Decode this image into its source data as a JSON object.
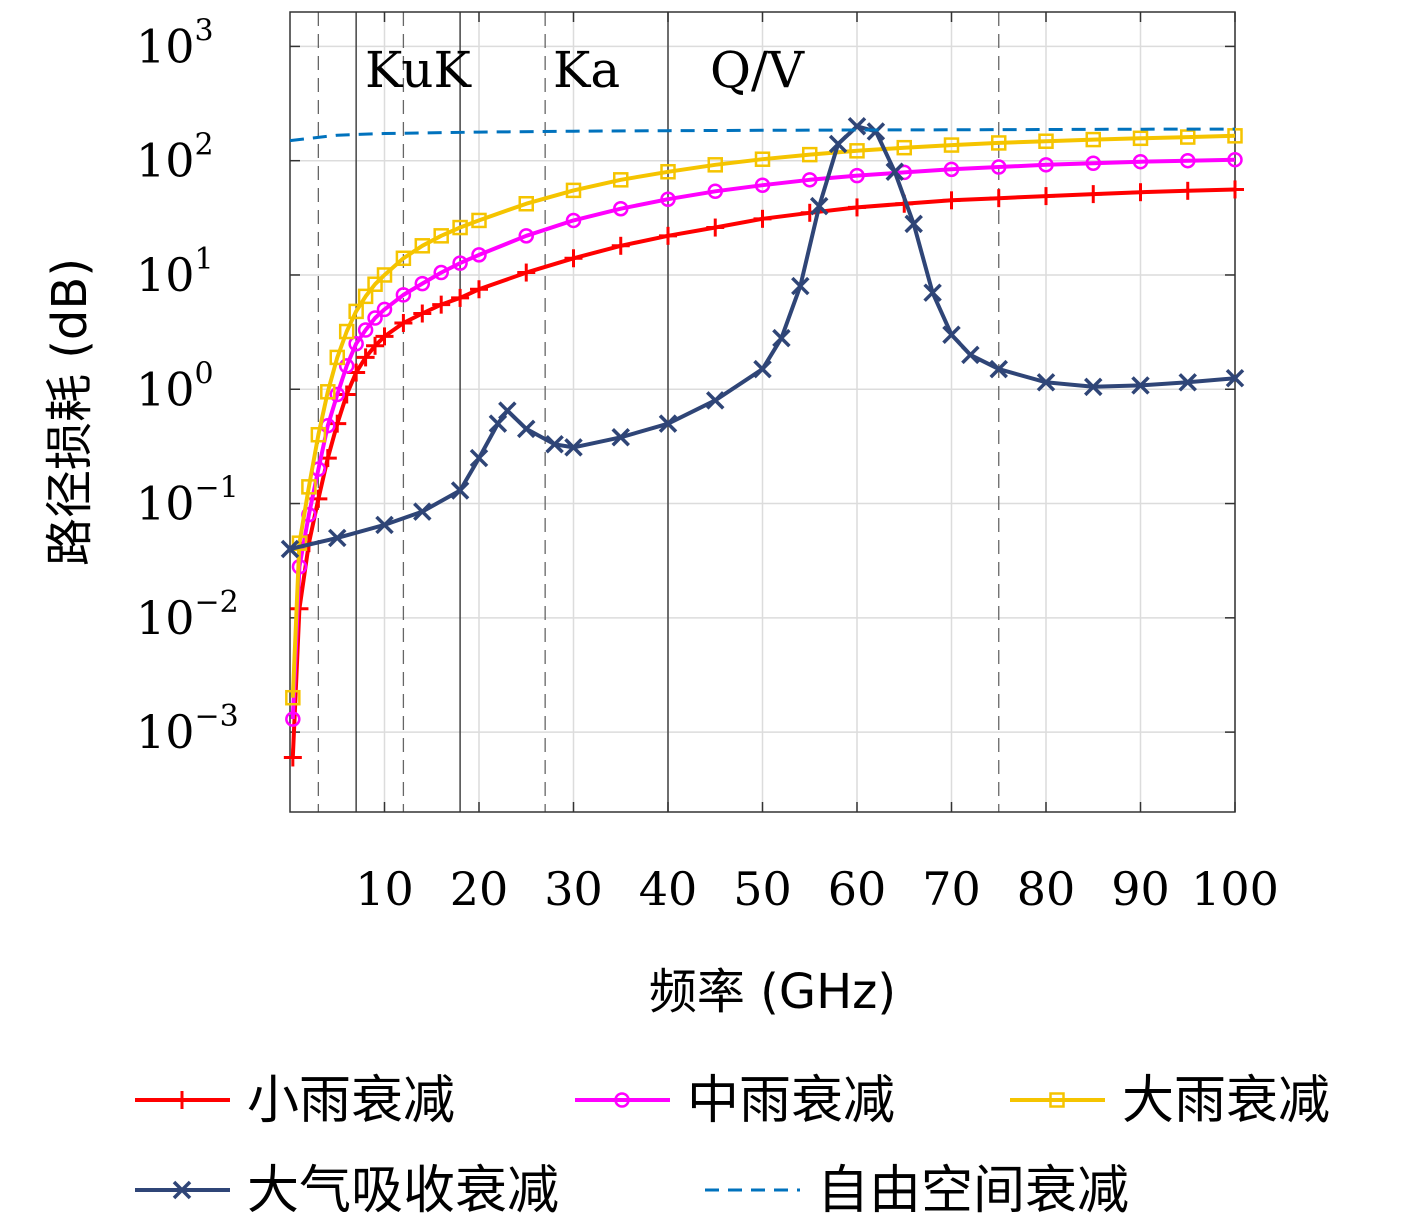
{
  "chart_data": {
    "type": "line",
    "xlabel": "频率 (GHz)",
    "ylabel": "路径损耗 (dB)",
    "x_scale": "linear",
    "y_scale": "log",
    "xlim": [
      0,
      100
    ],
    "ylim": [
      0.0002,
      2000
    ],
    "x_ticks": [
      10,
      20,
      30,
      40,
      50,
      60,
      70,
      80,
      90,
      100
    ],
    "y_ticks": [
      {
        "value": 0.001,
        "base": "10",
        "exp": "−3"
      },
      {
        "value": 0.01,
        "base": "10",
        "exp": "−2"
      },
      {
        "value": 0.1,
        "base": "10",
        "exp": "−1"
      },
      {
        "value": 1,
        "base": "10",
        "exp": "0"
      },
      {
        "value": 10,
        "base": "10",
        "exp": "1"
      },
      {
        "value": 100,
        "base": "10",
        "exp": "2"
      },
      {
        "value": 1000,
        "base": "10",
        "exp": "3"
      }
    ],
    "grid": true,
    "band_labels": [
      "KuK",
      "Ka",
      "Q/V"
    ],
    "band_boundaries_solid": [
      7,
      18,
      40
    ],
    "band_boundaries_dashed": [
      3,
      12,
      27,
      75
    ],
    "legend_position": "bottom",
    "series": [
      {
        "name": "小雨衰减",
        "color": "#ff0000",
        "marker": "plus",
        "x": [
          0.3,
          1,
          2,
          3,
          4,
          5,
          6,
          7,
          8,
          9,
          10,
          12,
          14,
          16,
          18,
          20,
          25,
          30,
          35,
          40,
          45,
          50,
          55,
          60,
          65,
          70,
          75,
          80,
          85,
          90,
          95,
          100
        ],
        "values": [
          0.0006,
          0.012,
          0.045,
          0.11,
          0.25,
          0.5,
          0.9,
          1.4,
          1.9,
          2.4,
          2.9,
          3.8,
          4.6,
          5.5,
          6.3,
          7.5,
          10.5,
          14,
          18,
          22,
          26,
          31,
          35,
          39,
          42,
          45,
          47,
          49,
          51,
          53,
          54.5,
          56
        ]
      },
      {
        "name": "中雨衰减",
        "color": "#ff00ff",
        "marker": "circle",
        "x": [
          0.3,
          1,
          2,
          3,
          4,
          5,
          6,
          7,
          8,
          9,
          10,
          12,
          14,
          16,
          18,
          20,
          25,
          30,
          35,
          40,
          45,
          50,
          55,
          60,
          65,
          70,
          75,
          80,
          85,
          90,
          95,
          100
        ],
        "values": [
          0.0013,
          0.028,
          0.08,
          0.2,
          0.48,
          0.9,
          1.6,
          2.5,
          3.3,
          4.2,
          5,
          6.7,
          8.4,
          10.5,
          12.7,
          15,
          22,
          30,
          38,
          46,
          54,
          61,
          68,
          74,
          79,
          84,
          88,
          92,
          95,
          98,
          100,
          102
        ]
      },
      {
        "name": "大雨衰减",
        "color": "#f5c400",
        "marker": "square",
        "x": [
          0.3,
          1,
          2,
          3,
          4,
          5,
          6,
          7,
          8,
          9,
          10,
          12,
          14,
          16,
          18,
          20,
          25,
          30,
          35,
          40,
          45,
          50,
          55,
          60,
          65,
          70,
          75,
          80,
          85,
          90,
          95,
          100
        ],
        "values": [
          0.002,
          0.045,
          0.14,
          0.4,
          0.95,
          1.9,
          3.2,
          4.8,
          6.5,
          8.3,
          10,
          14,
          18,
          22,
          26,
          30,
          42,
          55,
          68,
          80,
          92,
          103,
          113,
          122,
          130,
          137,
          143,
          148,
          153,
          157,
          161,
          165
        ]
      },
      {
        "name": "大气吸收衰减",
        "color": "#2f4577",
        "marker": "x",
        "x": [
          0,
          5,
          10,
          14,
          18,
          20,
          22,
          23,
          25,
          28,
          30,
          35,
          40,
          45,
          50,
          52,
          54,
          56,
          58,
          60,
          62,
          64,
          66,
          68,
          70,
          72,
          75,
          80,
          85,
          90,
          95,
          100
        ],
        "values": [
          0.04,
          0.05,
          0.065,
          0.085,
          0.13,
          0.25,
          0.5,
          0.65,
          0.45,
          0.33,
          0.31,
          0.38,
          0.5,
          0.8,
          1.5,
          2.8,
          8,
          40,
          140,
          200,
          180,
          80,
          28,
          7,
          3,
          2,
          1.5,
          1.15,
          1.05,
          1.08,
          1.15,
          1.25
        ]
      },
      {
        "name": "自由空间衰减",
        "color": "#0072bd",
        "marker": "none",
        "dash": true,
        "x": [
          0,
          5,
          10,
          20,
          30,
          40,
          50,
          60,
          70,
          80,
          90,
          100
        ],
        "values": [
          150,
          167,
          173,
          178,
          181,
          183,
          184.5,
          185.5,
          186.5,
          187.5,
          188.5,
          189
        ]
      }
    ]
  }
}
